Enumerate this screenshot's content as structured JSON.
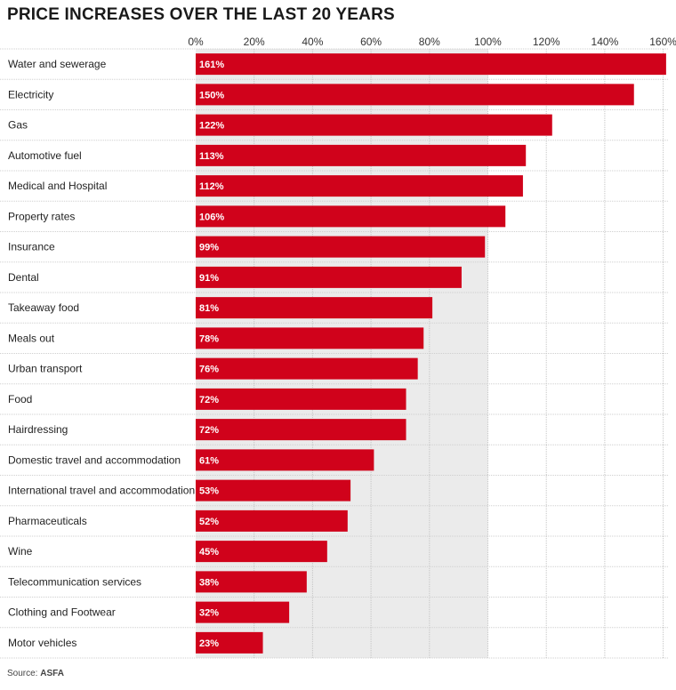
{
  "chart_data": {
    "type": "bar",
    "orientation": "horizontal",
    "title": "PRICE INCREASES OVER THE LAST 20 YEARS",
    "xlabel": "",
    "ylabel": "",
    "xlim": [
      0,
      160
    ],
    "x_ticks": [
      0,
      20,
      40,
      60,
      80,
      100,
      120,
      140,
      160
    ],
    "x_tick_labels": [
      "0%",
      "20%",
      "40%",
      "60%",
      "80%",
      "100%",
      "120%",
      "140%",
      "160%"
    ],
    "shaded_range": [
      0,
      100
    ],
    "grid": true,
    "categories": [
      "Water and sewerage",
      "Electricity",
      "Gas",
      "Automotive fuel",
      "Medical and Hospital",
      "Property rates",
      "Insurance",
      "Dental",
      "Takeaway food",
      "Meals out",
      "Urban transport",
      "Food",
      "Hairdressing",
      "Domestic travel and accommodation",
      "International travel and accommodation",
      "Pharmaceuticals",
      "Wine",
      "Telecommunication services",
      "Clothing and Footwear",
      "Motor vehicles"
    ],
    "values": [
      161,
      150,
      122,
      113,
      112,
      106,
      99,
      91,
      81,
      78,
      76,
      72,
      72,
      61,
      53,
      52,
      45,
      38,
      32,
      23
    ],
    "value_labels": [
      "161%",
      "150%",
      "122%",
      "113%",
      "112%",
      "106%",
      "99%",
      "91%",
      "81%",
      "78%",
      "76%",
      "72%",
      "72%",
      "61%",
      "53%",
      "52%",
      "45%",
      "38%",
      "32%",
      "23%"
    ],
    "bar_color": "#d0021b",
    "shade_color": "#ebebeb"
  },
  "source": {
    "label": "Source:",
    "value": "ASFA"
  }
}
